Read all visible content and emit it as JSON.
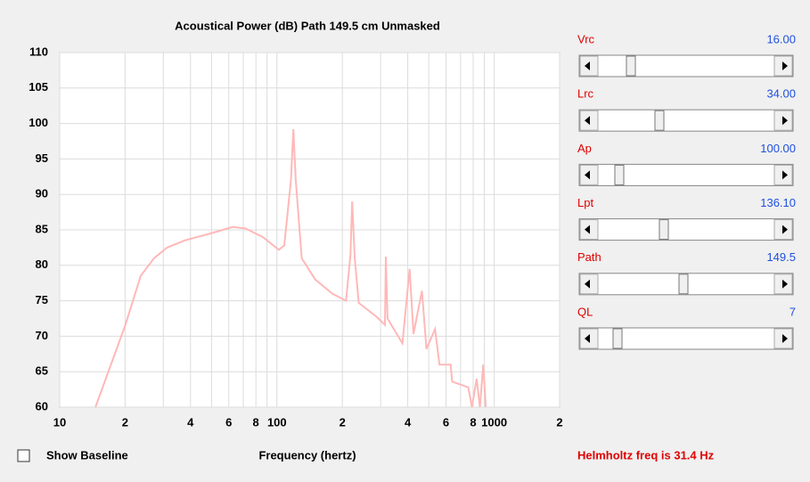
{
  "chart_data": {
    "type": "line",
    "title": "Acoustical Power (dB)   Path 149.5 cm   Unmasked",
    "x_label": "Frequency (hertz)",
    "x_scale": "log",
    "grid": true,
    "color": "#ffb8b8",
    "x": [
      14.6,
      20,
      23.6,
      27.2,
      31.2,
      37.5,
      49.5,
      62.5,
      71.5,
      86,
      102,
      108,
      116,
      119,
      122,
      130,
      150,
      180,
      208,
      218,
      222,
      228,
      238,
      286,
      314,
      317,
      323,
      378,
      408,
      425,
      465,
      488,
      534,
      560,
      630,
      640,
      760,
      790,
      830,
      860,
      890,
      915
    ],
    "values": [
      60,
      71.5,
      78.5,
      81,
      82.5,
      83.5,
      84.5,
      85.4,
      85.2,
      84,
      82.2,
      82.8,
      92,
      99.2,
      92,
      81,
      78,
      76,
      75,
      81.5,
      89,
      81,
      74.7,
      72.8,
      71.6,
      81.2,
      72.5,
      69,
      79.5,
      70.3,
      76.4,
      68.2,
      71,
      66,
      66,
      63.6,
      62.8,
      60,
      64,
      60,
      66,
      60
    ],
    "xlim": [
      10,
      2000
    ],
    "xticks": [
      10,
      {
        "value": 20,
        "label": "2"
      },
      {
        "value": 40,
        "label": "4"
      },
      {
        "value": 60,
        "label": "6"
      },
      {
        "value": 80,
        "label": "8"
      },
      100,
      {
        "value": 200,
        "label": "2"
      },
      {
        "value": 400,
        "label": "4"
      },
      {
        "value": 600,
        "label": "6"
      },
      {
        "value": 800,
        "label": "8"
      },
      1000,
      {
        "value": 2000,
        "label": "2"
      }
    ],
    "xminor_ticks": [
      30,
      50,
      70,
      90,
      300,
      500,
      700,
      900
    ],
    "ylim": [
      60,
      110
    ],
    "yticks": [
      60,
      65,
      70,
      75,
      80,
      85,
      90,
      95,
      100,
      105,
      110
    ]
  },
  "controls": [
    {
      "label": "Vrc",
      "value": "16.00"
    },
    {
      "label": "Lrc",
      "value": "34.00"
    },
    {
      "label": "Ap",
      "value": "100.00"
    },
    {
      "label": "Lpt",
      "value": "136.10"
    },
    {
      "label": "Path",
      "value": "149.5"
    },
    {
      "label": "QL",
      "value": "7"
    }
  ],
  "baseline_checkbox": "Show Baseline",
  "status": "Helmholtz freq is 31.4 Hz"
}
